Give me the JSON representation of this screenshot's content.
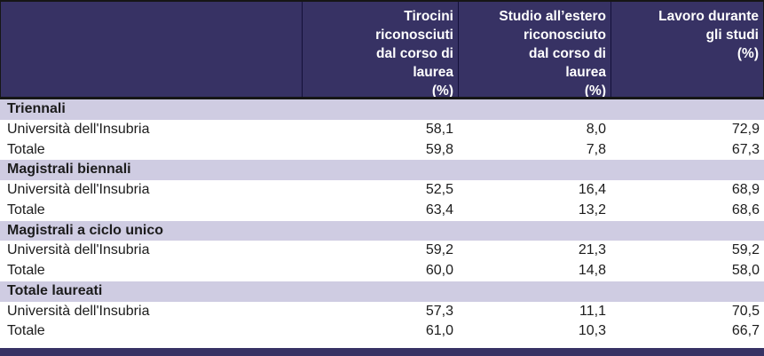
{
  "colors": {
    "header_bg": "#373264",
    "band_bg": "#cfcce2",
    "border_dark": "#161616",
    "header_text": "#ffffff",
    "body_text": "#1c1c1c"
  },
  "table": {
    "header": {
      "row_label_column": "",
      "columns": [
        {
          "label": "Tirocini\nriconosciuti\ndal corso di\nlaurea\n(%)"
        },
        {
          "label": "Studio all’estero\nriconosciuto\ndal corso di\nlaurea\n(%)"
        },
        {
          "label": "Lavoro durante\ngli studi\n(%)"
        }
      ]
    },
    "sections": [
      {
        "title": "Triennali",
        "rows": [
          {
            "label": "Università dell'Insubria",
            "values": [
              "58,1",
              "8,0",
              "72,9"
            ]
          },
          {
            "label": "Totale",
            "values": [
              "59,8",
              "7,8",
              "67,3"
            ]
          }
        ]
      },
      {
        "title": "Magistrali biennali",
        "rows": [
          {
            "label": "Università dell'Insubria",
            "values": [
              "52,5",
              "16,4",
              "68,9"
            ]
          },
          {
            "label": "Totale",
            "values": [
              "63,4",
              "13,2",
              "68,6"
            ]
          }
        ]
      },
      {
        "title": "Magistrali a ciclo unico",
        "rows": [
          {
            "label": "Università dell'Insubria",
            "values": [
              "59,2",
              "21,3",
              "59,2"
            ]
          },
          {
            "label": "Totale",
            "values": [
              "60,0",
              "14,8",
              "58,0"
            ]
          }
        ]
      },
      {
        "title": "Totale laureati",
        "rows": [
          {
            "label": "Università dell'Insubria",
            "values": [
              "57,3",
              "11,1",
              "70,5"
            ]
          },
          {
            "label": "Totale",
            "values": [
              "61,0",
              "10,3",
              "66,7"
            ]
          }
        ]
      }
    ]
  }
}
